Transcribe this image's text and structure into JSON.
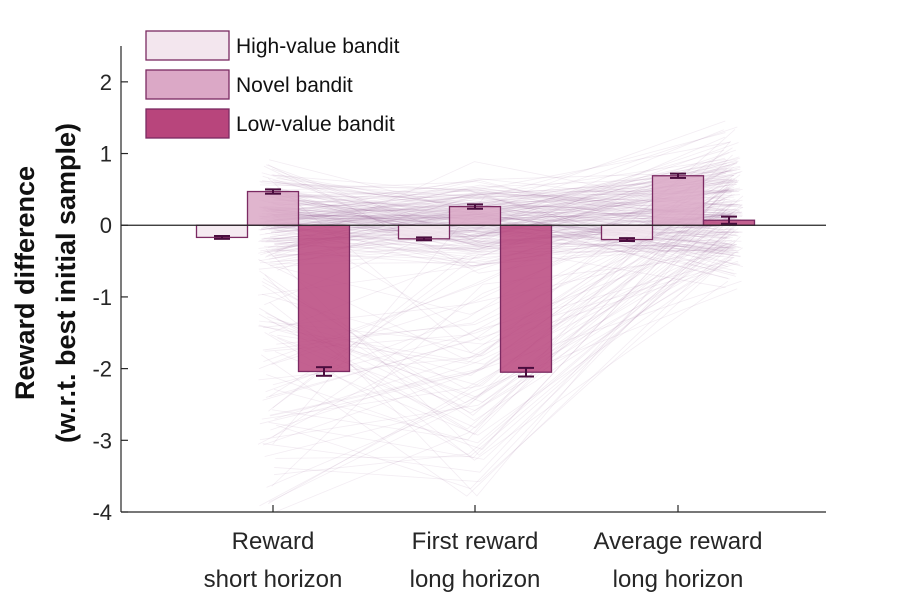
{
  "chart_data": {
    "type": "bar",
    "ylabel_line1": "Reward difference",
    "ylabel_line2": "(w.r.t. best initial sample)",
    "ylim": [
      -4,
      2.5
    ],
    "yticks": [
      2,
      1,
      0,
      -1,
      -2,
      -3,
      -4
    ],
    "categories": [
      {
        "line1": "Reward",
        "line2": "short horizon"
      },
      {
        "line1": "First reward",
        "line2": "long horizon"
      },
      {
        "line1": "Average reward",
        "line2": "long horizon"
      }
    ],
    "series": [
      {
        "name": "High-value bandit",
        "color": "#f3e6ee",
        "values": [
          -0.17,
          -0.19,
          -0.2
        ],
        "errors": [
          0.02,
          0.02,
          0.02
        ]
      },
      {
        "name": "Novel bandit",
        "color": "#dba8c6",
        "values": [
          0.47,
          0.26,
          0.69
        ],
        "errors": [
          0.03,
          0.03,
          0.03
        ]
      },
      {
        "name": "Low-value bandit",
        "color": "#b8457c",
        "values": [
          -2.04,
          -2.05,
          0.07
        ],
        "errors": [
          0.06,
          0.06,
          0.05
        ]
      }
    ],
    "legend_position": "top-left",
    "grid": false,
    "edge_color": "#7b2a62",
    "errorbar_color": "#4a0d3e",
    "individual_lines_color": "#9b6a9f"
  }
}
